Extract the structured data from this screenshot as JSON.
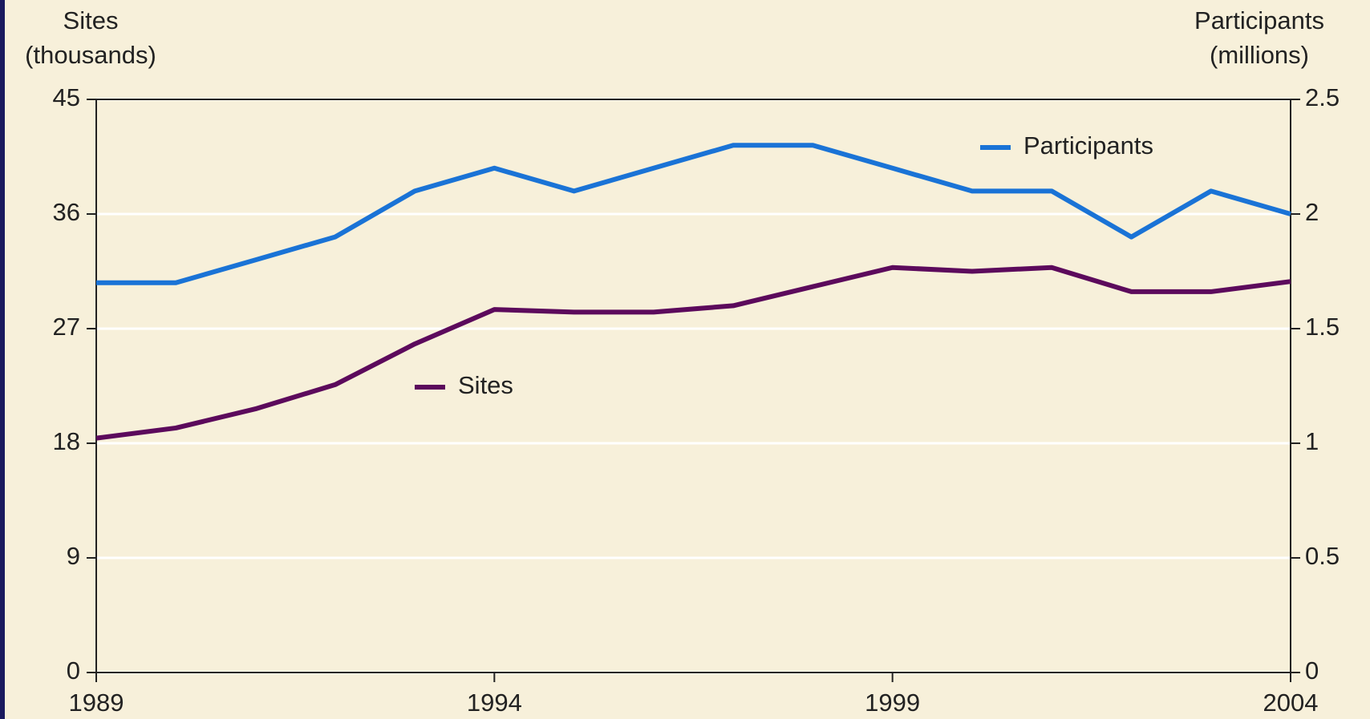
{
  "chart_data": {
    "type": "line",
    "y_label": [
      "Sites",
      "(thousands)"
    ],
    "y2_label": [
      "Participants",
      "(millions)"
    ],
    "x": [
      1989,
      1990,
      1991,
      1992,
      1993,
      1994,
      1995,
      1996,
      1997,
      1998,
      1999,
      2000,
      2001,
      2002,
      2003,
      2004
    ],
    "xlim": [
      1989,
      2004
    ],
    "xticks": [
      1989,
      1994,
      1999,
      2004
    ],
    "ylim": [
      0,
      45
    ],
    "yticks": [
      0,
      9,
      18,
      27,
      36,
      45
    ],
    "y2lim": [
      0,
      2.5
    ],
    "y2ticks": [
      0,
      0.5,
      1,
      1.5,
      2,
      2.5
    ],
    "grid": true,
    "series": [
      {
        "name": "Participants",
        "color": "#1a73d6",
        "axis": "y2",
        "values": [
          1.7,
          1.7,
          1.8,
          1.9,
          2.1,
          2.2,
          2.1,
          2.2,
          2.3,
          2.3,
          2.2,
          2.1,
          2.1,
          1.9,
          2.1,
          2.0
        ]
      },
      {
        "name": "Sites",
        "color": "#5c0a5c",
        "values": [
          18.4,
          19.2,
          20.7,
          22.6,
          25.8,
          28.5,
          28.3,
          28.3,
          28.8,
          30.3,
          31.8,
          31.5,
          31.8,
          29.9,
          29.9,
          30.7
        ]
      }
    ]
  }
}
